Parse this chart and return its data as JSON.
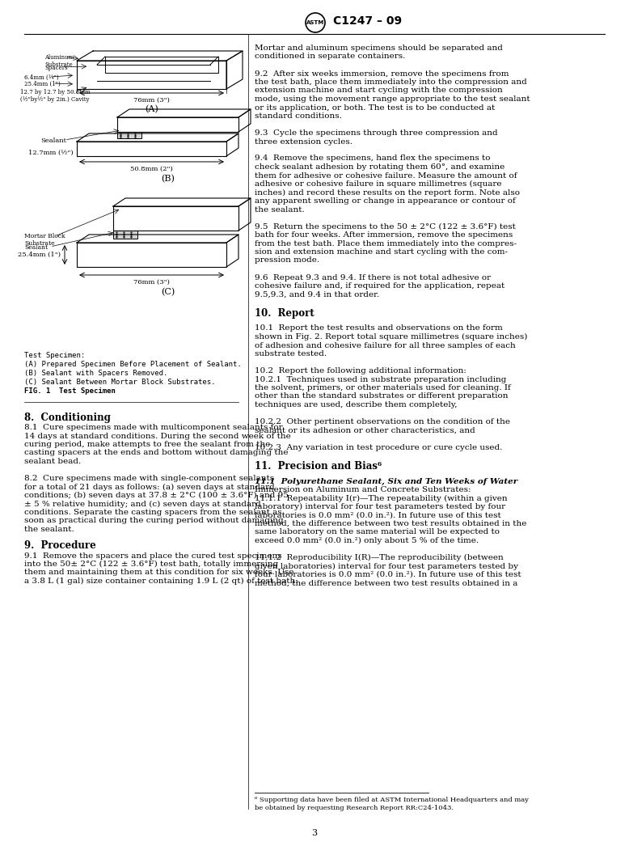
{
  "title": "C1247 – 09",
  "page_number": "3",
  "background_color": "#ffffff",
  "text_color": "#000000",
  "header_right_text": [
    "Mortar and aluminum specimens should be separated and",
    "conditioned in separate containers.",
    "",
    "9.2  After six weeks immersion, remove the specimens from",
    "the test bath, place them immediately into the compression and",
    "extension machine and start cycling with the compression",
    "mode, using the movement range appropriate to the test sealant",
    "or its application, or both. The test is to be conducted at",
    "standard conditions.",
    "",
    "9.3  Cycle the specimens through three compression and",
    "three extension cycles.",
    "",
    "9.4  Remove the specimens, hand flex the specimens to",
    "check sealant adhesion by rotating them 60°, and examine",
    "them for adhesive or cohesive failure. Measure the amount of",
    "adhesive or cohesive failure in square millimetres (square",
    "inches) and record these results on the report form. Note also",
    "any apparent swelling or change in appearance or contour of",
    "the sealant.",
    "",
    "9.5  Return the specimens to the 50 ± 2°C (122 ± 3.6°F) test",
    "bath for four weeks. After immersion, remove the specimens",
    "from the test bath. Place them immediately into the compres-",
    "sion and extension machine and start cycling with the com-",
    "pression mode.",
    "",
    "9.6  Repeat 9.3 and 9.4. If there is not total adhesive or",
    "cohesive failure and, if required for the application, repeat",
    "9.5,9.3, and 9.4 in that order.",
    "",
    "10.  Report",
    "",
    "10.1  Report the test results and observations on the form",
    "shown in Fig. 2. Report total square millimetres (square inches)",
    "of adhesion and cohesive failure for all three samples of each",
    "substrate tested.",
    "",
    "10.2  Report the following additional information:",
    "10.2.1  Techniques used in substrate preparation including",
    "the solvent, primers, or other materials used for cleaning. If",
    "other than the standard substrates or different preparation",
    "techniques are used, describe them completely,",
    "",
    "10.2.2  Other pertinent observations on the condition of the",
    "sealant or its adhesion or other characteristics, and",
    "",
    "10.2.3  Any variation in test procedure or cure cycle used.",
    "",
    "11.  Precision and Bias⁶",
    "",
    "11.1  Polyurethane Sealant, Six and Ten Weeks of Water",
    "Immersion on Aluminum and Concrete Substrates:",
    "11.1.1  Repeatability I(r)—The repeatability (within a given",
    "laboratory) interval for four test parameters tested by four",
    "laboratories is 0.0 mm² (0.0 in.²). In future use of this test",
    "method, the difference between two test results obtained in the",
    "same laboratory on the same material will be expected to",
    "exceed 0.0 mm² (0.0 in.²) only about 5 % of the time.",
    "",
    "11.1.2  Reproducibility I(R)—The reproducibility (between",
    "given laboratories) interval for four test parameters tested by",
    "four laboratories is 0.0 mm² (0.0 in.²). In future use of this test",
    "method, the difference between two test results obtained in a"
  ],
  "section8_title": "8.  Conditioning",
  "section8_text": [
    "8.1  Cure specimens made with multicomponent sealants for",
    "14 days at standard conditions. During the second week of the",
    "curing period, make attempts to free the sealant from the",
    "casting spacers at the ends and bottom without damaging the",
    "sealant bead.",
    "",
    "8.2  Cure specimens made with single-component sealants",
    "for a total of 21 days as follows: (a) seven days at standard",
    "conditions; (b) seven days at 37.8 ± 2°C (100 ± 3.6°F) and 95",
    "± 5 % relative humidity; and (c) seven days at standard",
    "conditions. Separate the casting spacers from the sealant as",
    "soon as practical during the curing period without damaging",
    "the sealant."
  ],
  "section9_title": "9.  Procedure",
  "section9_text": [
    "9.1  Remove the spacers and place the cured test specimens",
    "into the 50± 2°C (122 ± 3.6°F) test bath, totally immersing",
    "them and maintaining them at this condition for six weeks. Use",
    "a 3.8 L (1 gal) size container containing 1.9 L (2 qt) of test bath."
  ],
  "fig_caption": [
    "Test Specimen:",
    "(A) Prepared Specimen Before Placement of Sealant.",
    "(B) Sealant with Spacers Removed.",
    "(C) Sealant Between Mortar Block Substrates.",
    "FIG. 1  Test Specimen"
  ],
  "footnote": "⁶ Supporting data have been filed at ASTM International Headquarters and may\nbe obtained by requesting Research Report RR:C24-1043."
}
